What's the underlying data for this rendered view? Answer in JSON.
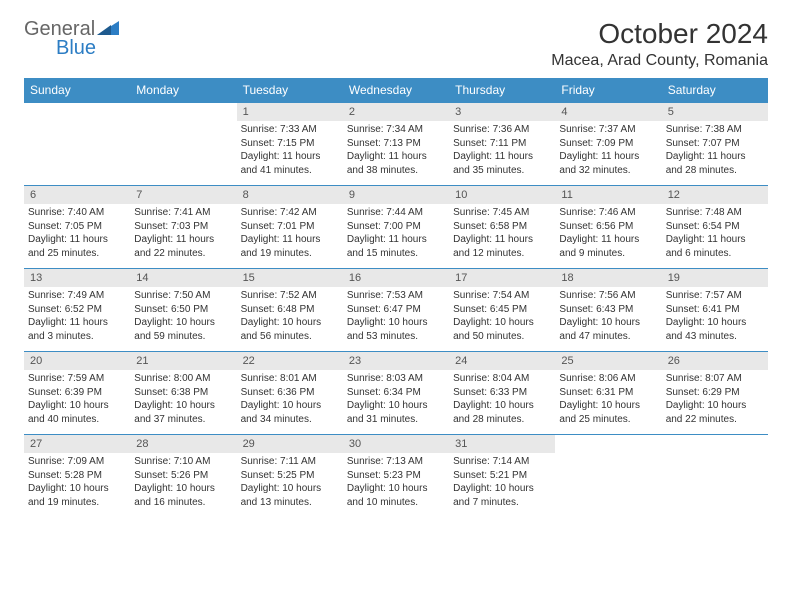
{
  "brand": {
    "word1": "General",
    "word2": "Blue",
    "icon_color": "#2c7dc4",
    "text_color": "#666666"
  },
  "title": "October 2024",
  "location": "Macea, Arad County, Romania",
  "colors": {
    "header_bg": "#3d8dc4",
    "header_text": "#ffffff",
    "daynum_bg": "#e8e8e8",
    "daynum_text": "#555555",
    "body_text": "#333333",
    "rule": "#3d8dc4"
  },
  "day_labels": [
    "Sunday",
    "Monday",
    "Tuesday",
    "Wednesday",
    "Thursday",
    "Friday",
    "Saturday"
  ],
  "weeks": [
    [
      null,
      null,
      {
        "n": "1",
        "sr": "Sunrise: 7:33 AM",
        "ss": "Sunset: 7:15 PM",
        "dl": "Daylight: 11 hours and 41 minutes."
      },
      {
        "n": "2",
        "sr": "Sunrise: 7:34 AM",
        "ss": "Sunset: 7:13 PM",
        "dl": "Daylight: 11 hours and 38 minutes."
      },
      {
        "n": "3",
        "sr": "Sunrise: 7:36 AM",
        "ss": "Sunset: 7:11 PM",
        "dl": "Daylight: 11 hours and 35 minutes."
      },
      {
        "n": "4",
        "sr": "Sunrise: 7:37 AM",
        "ss": "Sunset: 7:09 PM",
        "dl": "Daylight: 11 hours and 32 minutes."
      },
      {
        "n": "5",
        "sr": "Sunrise: 7:38 AM",
        "ss": "Sunset: 7:07 PM",
        "dl": "Daylight: 11 hours and 28 minutes."
      }
    ],
    [
      {
        "n": "6",
        "sr": "Sunrise: 7:40 AM",
        "ss": "Sunset: 7:05 PM",
        "dl": "Daylight: 11 hours and 25 minutes."
      },
      {
        "n": "7",
        "sr": "Sunrise: 7:41 AM",
        "ss": "Sunset: 7:03 PM",
        "dl": "Daylight: 11 hours and 22 minutes."
      },
      {
        "n": "8",
        "sr": "Sunrise: 7:42 AM",
        "ss": "Sunset: 7:01 PM",
        "dl": "Daylight: 11 hours and 19 minutes."
      },
      {
        "n": "9",
        "sr": "Sunrise: 7:44 AM",
        "ss": "Sunset: 7:00 PM",
        "dl": "Daylight: 11 hours and 15 minutes."
      },
      {
        "n": "10",
        "sr": "Sunrise: 7:45 AM",
        "ss": "Sunset: 6:58 PM",
        "dl": "Daylight: 11 hours and 12 minutes."
      },
      {
        "n": "11",
        "sr": "Sunrise: 7:46 AM",
        "ss": "Sunset: 6:56 PM",
        "dl": "Daylight: 11 hours and 9 minutes."
      },
      {
        "n": "12",
        "sr": "Sunrise: 7:48 AM",
        "ss": "Sunset: 6:54 PM",
        "dl": "Daylight: 11 hours and 6 minutes."
      }
    ],
    [
      {
        "n": "13",
        "sr": "Sunrise: 7:49 AM",
        "ss": "Sunset: 6:52 PM",
        "dl": "Daylight: 11 hours and 3 minutes."
      },
      {
        "n": "14",
        "sr": "Sunrise: 7:50 AM",
        "ss": "Sunset: 6:50 PM",
        "dl": "Daylight: 10 hours and 59 minutes."
      },
      {
        "n": "15",
        "sr": "Sunrise: 7:52 AM",
        "ss": "Sunset: 6:48 PM",
        "dl": "Daylight: 10 hours and 56 minutes."
      },
      {
        "n": "16",
        "sr": "Sunrise: 7:53 AM",
        "ss": "Sunset: 6:47 PM",
        "dl": "Daylight: 10 hours and 53 minutes."
      },
      {
        "n": "17",
        "sr": "Sunrise: 7:54 AM",
        "ss": "Sunset: 6:45 PM",
        "dl": "Daylight: 10 hours and 50 minutes."
      },
      {
        "n": "18",
        "sr": "Sunrise: 7:56 AM",
        "ss": "Sunset: 6:43 PM",
        "dl": "Daylight: 10 hours and 47 minutes."
      },
      {
        "n": "19",
        "sr": "Sunrise: 7:57 AM",
        "ss": "Sunset: 6:41 PM",
        "dl": "Daylight: 10 hours and 43 minutes."
      }
    ],
    [
      {
        "n": "20",
        "sr": "Sunrise: 7:59 AM",
        "ss": "Sunset: 6:39 PM",
        "dl": "Daylight: 10 hours and 40 minutes."
      },
      {
        "n": "21",
        "sr": "Sunrise: 8:00 AM",
        "ss": "Sunset: 6:38 PM",
        "dl": "Daylight: 10 hours and 37 minutes."
      },
      {
        "n": "22",
        "sr": "Sunrise: 8:01 AM",
        "ss": "Sunset: 6:36 PM",
        "dl": "Daylight: 10 hours and 34 minutes."
      },
      {
        "n": "23",
        "sr": "Sunrise: 8:03 AM",
        "ss": "Sunset: 6:34 PM",
        "dl": "Daylight: 10 hours and 31 minutes."
      },
      {
        "n": "24",
        "sr": "Sunrise: 8:04 AM",
        "ss": "Sunset: 6:33 PM",
        "dl": "Daylight: 10 hours and 28 minutes."
      },
      {
        "n": "25",
        "sr": "Sunrise: 8:06 AM",
        "ss": "Sunset: 6:31 PM",
        "dl": "Daylight: 10 hours and 25 minutes."
      },
      {
        "n": "26",
        "sr": "Sunrise: 8:07 AM",
        "ss": "Sunset: 6:29 PM",
        "dl": "Daylight: 10 hours and 22 minutes."
      }
    ],
    [
      {
        "n": "27",
        "sr": "Sunrise: 7:09 AM",
        "ss": "Sunset: 5:28 PM",
        "dl": "Daylight: 10 hours and 19 minutes."
      },
      {
        "n": "28",
        "sr": "Sunrise: 7:10 AM",
        "ss": "Sunset: 5:26 PM",
        "dl": "Daylight: 10 hours and 16 minutes."
      },
      {
        "n": "29",
        "sr": "Sunrise: 7:11 AM",
        "ss": "Sunset: 5:25 PM",
        "dl": "Daylight: 10 hours and 13 minutes."
      },
      {
        "n": "30",
        "sr": "Sunrise: 7:13 AM",
        "ss": "Sunset: 5:23 PM",
        "dl": "Daylight: 10 hours and 10 minutes."
      },
      {
        "n": "31",
        "sr": "Sunrise: 7:14 AM",
        "ss": "Sunset: 5:21 PM",
        "dl": "Daylight: 10 hours and 7 minutes."
      },
      null,
      null
    ]
  ]
}
